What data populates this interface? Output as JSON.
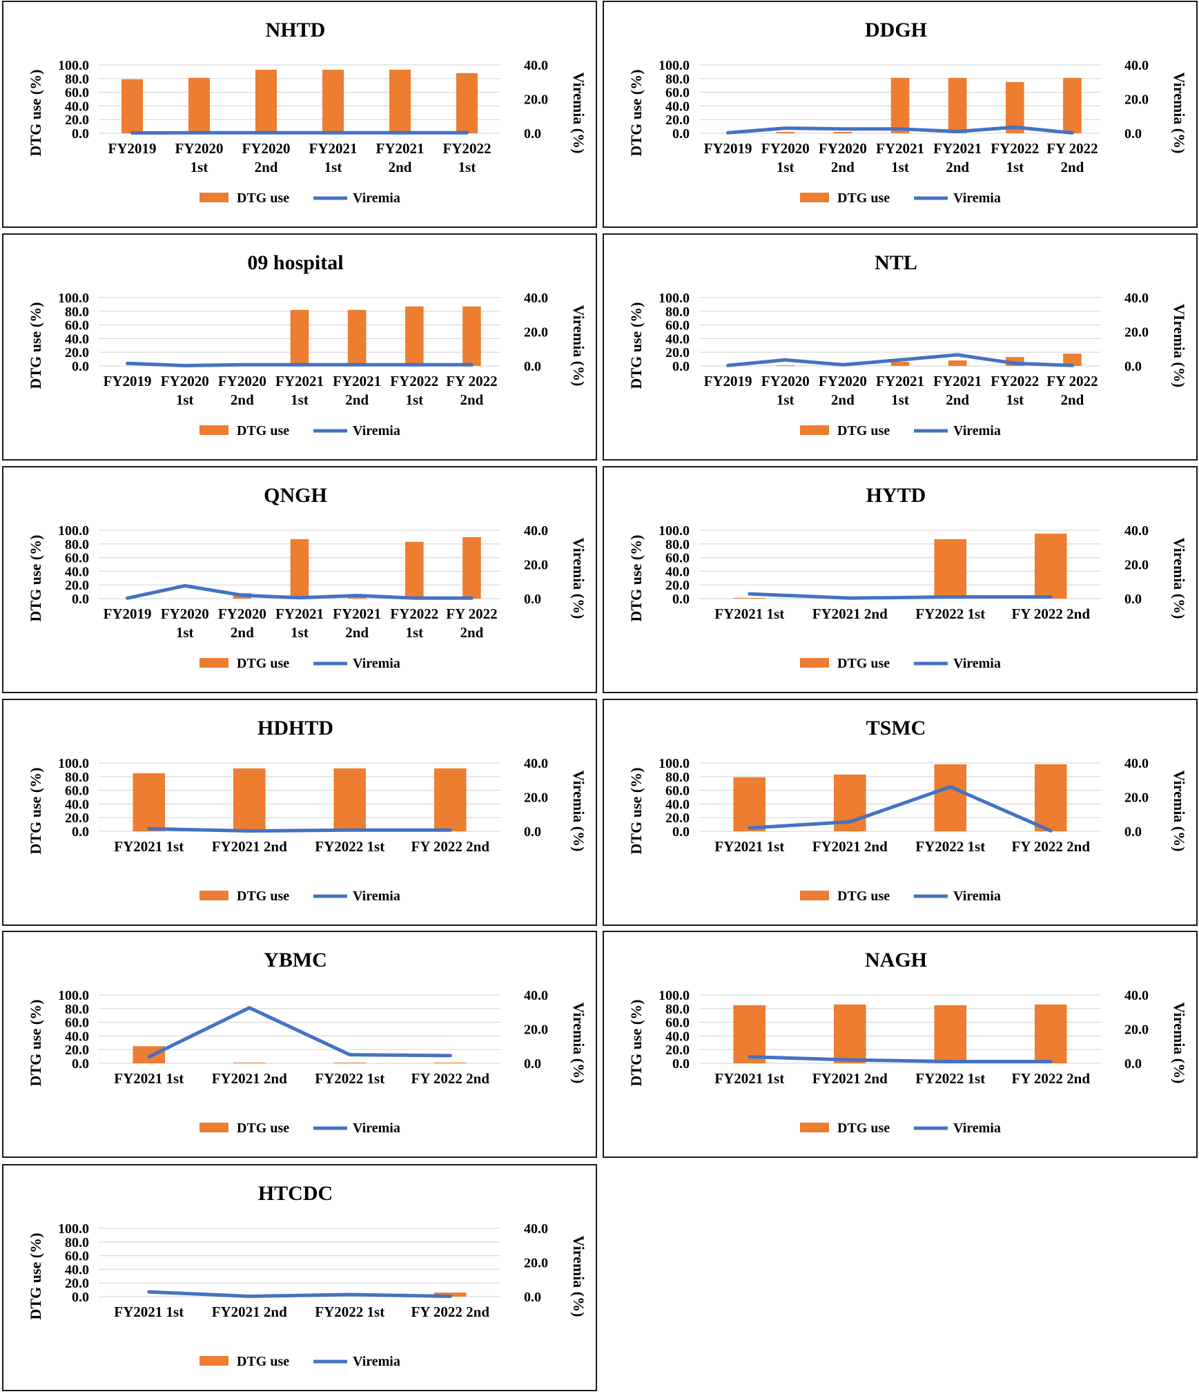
{
  "colors": {
    "bar": "#ED7D31",
    "line": "#4472C4",
    "grid": "#d9d9d9",
    "frame": "#1a1a1a"
  },
  "chart_data": [
    {
      "type": "bar+line",
      "title": "NHTD",
      "categories": [
        [
          "FY2019"
        ],
        [
          "FY2020",
          "1st"
        ],
        [
          "FY2020",
          "2nd"
        ],
        [
          "FY2021",
          "1st"
        ],
        [
          "FY2021",
          "2nd"
        ],
        [
          "FY2022",
          "1st"
        ]
      ],
      "series": [
        {
          "name": "DTG use",
          "type": "bar",
          "axis": "left",
          "values": [
            79,
            81,
            93,
            93,
            93,
            88
          ]
        },
        {
          "name": "Viremia",
          "type": "line",
          "axis": "right",
          "values": [
            0.2,
            0.3,
            0.3,
            0.3,
            0.3,
            0.3
          ]
        }
      ],
      "ylabel": "DTG use (%)",
      "y2label": "Viremia (%)",
      "yticks": [
        "100.0",
        "80.0",
        "60.0",
        "40.0",
        "20.0",
        "0.0"
      ],
      "ylim": [
        0,
        100
      ],
      "y2ticks": [
        "40.0",
        "20.0",
        "0.0"
      ],
      "y2lim": [
        0,
        40
      ],
      "legend": [
        "DTG use",
        "Viremia"
      ],
      "legend_position": "bottom",
      "grid": true
    },
    {
      "type": "bar+line",
      "title": "DDGH",
      "categories": [
        [
          "FY2019"
        ],
        [
          "FY2020",
          "1st"
        ],
        [
          "FY2020",
          "2nd"
        ],
        [
          "FY2021",
          "1st"
        ],
        [
          "FY2021",
          "2nd"
        ],
        [
          "FY2022",
          "1st"
        ],
        [
          "FY 2022",
          "2nd"
        ]
      ],
      "series": [
        {
          "name": "DTG use",
          "type": "bar",
          "axis": "left",
          "values": [
            0,
            2,
            2,
            81,
            81,
            75,
            81
          ]
        },
        {
          "name": "Viremia",
          "type": "line",
          "axis": "right",
          "values": [
            0.3,
            3,
            2.5,
            2.5,
            1,
            3.5,
            0.2
          ]
        }
      ],
      "ylabel": "DTG use (%)",
      "y2label": "Viremia (%)",
      "yticks": [
        "100.0",
        "80.0",
        "60.0",
        "40.0",
        "20.0",
        "0.0"
      ],
      "ylim": [
        0,
        100
      ],
      "y2ticks": [
        "40.0",
        "20.0",
        "0.0"
      ],
      "y2lim": [
        0,
        40
      ],
      "legend": [
        "DTG use",
        "Viremia"
      ],
      "legend_position": "bottom",
      "grid": true
    },
    {
      "type": "bar+line",
      "title": "09 hospital",
      "categories": [
        [
          "FY2019"
        ],
        [
          "FY2020",
          "1st"
        ],
        [
          "FY2020",
          "2nd"
        ],
        [
          "FY2021",
          "1st"
        ],
        [
          "FY2021",
          "2nd"
        ],
        [
          "FY2022",
          "1st"
        ],
        [
          "FY 2022",
          "2nd"
        ]
      ],
      "series": [
        {
          "name": "DTG use",
          "type": "bar",
          "axis": "left",
          "values": [
            0,
            0,
            0,
            82,
            82,
            87,
            87
          ]
        },
        {
          "name": "Viremia",
          "type": "line",
          "axis": "right",
          "values": [
            1.5,
            0.2,
            0.7,
            0.7,
            0.7,
            0.7,
            0.7
          ]
        }
      ],
      "ylabel": "DTG use (%)",
      "y2label": "Viremia (%)",
      "yticks": [
        "100.0",
        "80.0",
        "60.0",
        "40.0",
        "20.0",
        "0.0"
      ],
      "ylim": [
        0,
        100
      ],
      "y2ticks": [
        "40.0",
        "20.0",
        "0.0"
      ],
      "y2lim": [
        0,
        40
      ],
      "legend": [
        "DTG use",
        "Viremia"
      ],
      "legend_position": "bottom",
      "grid": true
    },
    {
      "type": "bar+line",
      "title": "NTL",
      "categories": [
        [
          "FY2019"
        ],
        [
          "FY2020",
          "1st"
        ],
        [
          "FY2020",
          "2nd"
        ],
        [
          "FY2021",
          "1st"
        ],
        [
          "FY2021",
          "2nd"
        ],
        [
          "FY2022",
          "1st"
        ],
        [
          "FY 2022",
          "2nd"
        ]
      ],
      "series": [
        {
          "name": "DTG use",
          "type": "bar",
          "axis": "left",
          "values": [
            0,
            1,
            0,
            6,
            8,
            13,
            18
          ]
        },
        {
          "name": "Viremia",
          "type": "line",
          "axis": "right",
          "values": [
            0.3,
            3.5,
            0.7,
            3.5,
            6.5,
            1.5,
            0.3
          ]
        }
      ],
      "ylabel": "DTG use (%)",
      "y2label": "VIremia (%)",
      "yticks": [
        "100.0",
        "80.0",
        "60.0",
        "40.0",
        "20.0",
        "0.0"
      ],
      "ylim": [
        0,
        100
      ],
      "y2ticks": [
        "40.0",
        "20.0",
        "0.0"
      ],
      "y2lim": [
        0,
        40
      ],
      "legend": [
        "DTG use",
        "Viremia"
      ],
      "legend_position": "bottom",
      "grid": true
    },
    {
      "type": "bar+line",
      "title": "QNGH",
      "categories": [
        [
          "FY2019"
        ],
        [
          "FY2020",
          "1st"
        ],
        [
          "FY2020",
          "2nd"
        ],
        [
          "FY2021",
          "1st"
        ],
        [
          "FY2021",
          "2nd"
        ],
        [
          "FY2022",
          "1st"
        ],
        [
          "FY 2022",
          "2nd"
        ]
      ],
      "series": [
        {
          "name": "DTG use",
          "type": "bar",
          "axis": "left",
          "values": [
            0,
            0,
            8,
            87,
            5,
            83,
            90
          ]
        },
        {
          "name": "Viremia",
          "type": "line",
          "axis": "right",
          "values": [
            0.3,
            7.5,
            2,
            0.5,
            1.8,
            0.3,
            0.3
          ]
        }
      ],
      "ylabel": "DTG use (%)",
      "y2label": "Viremia (%)",
      "yticks": [
        "100.0",
        "80.0",
        "60.0",
        "40.0",
        "20.0",
        "0.0"
      ],
      "ylim": [
        0,
        100
      ],
      "y2ticks": [
        "40.0",
        "20.0",
        "0.0"
      ],
      "y2lim": [
        0,
        40
      ],
      "legend": [
        "DTG use",
        "Viremia"
      ],
      "legend_position": "bottom",
      "grid": true
    },
    {
      "type": "bar+line",
      "title": "HYTD",
      "categories": [
        [
          "FY2021 1st"
        ],
        [
          "FY2021 2nd"
        ],
        [
          "FY2022 1st"
        ],
        [
          "FY 2022 2nd"
        ]
      ],
      "series": [
        {
          "name": "DTG use",
          "type": "bar",
          "axis": "left",
          "values": [
            1,
            1,
            87,
            95
          ]
        },
        {
          "name": "Viremia",
          "type": "line",
          "axis": "right",
          "values": [
            2.8,
            0.3,
            1,
            1
          ]
        }
      ],
      "ylabel": "DTG use (%)",
      "y2label": "Viremia (%)",
      "yticks": [
        "100.0",
        "80.0",
        "60.0",
        "40.0",
        "20.0",
        "0.0"
      ],
      "ylim": [
        0,
        100
      ],
      "y2ticks": [
        "40.0",
        "20.0",
        "0.0"
      ],
      "y2lim": [
        0,
        40
      ],
      "legend": [
        "DTG use",
        "Viremia"
      ],
      "legend_position": "bottom",
      "grid": true
    },
    {
      "type": "bar+line",
      "title": "HDHTD",
      "categories": [
        [
          "FY2021 1st"
        ],
        [
          "FY2021 2nd"
        ],
        [
          "FY2022 1st"
        ],
        [
          "FY 2022 2nd"
        ]
      ],
      "series": [
        {
          "name": "DTG use",
          "type": "bar",
          "axis": "left",
          "values": [
            85,
            92,
            92,
            92
          ]
        },
        {
          "name": "Viremia",
          "type": "line",
          "axis": "right",
          "values": [
            1.5,
            0.2,
            0.7,
            0.7
          ]
        }
      ],
      "ylabel": "DTG use (%)",
      "y2label": "Viremia (%)",
      "yticks": [
        "100.0",
        "80.0",
        "60.0",
        "40.0",
        "20.0",
        "0.0"
      ],
      "ylim": [
        0,
        100
      ],
      "y2ticks": [
        "40.0",
        "20.0",
        "0.0"
      ],
      "y2lim": [
        0,
        40
      ],
      "legend": [
        "DTG use",
        "Viremia"
      ],
      "legend_position": "bottom",
      "grid": true
    },
    {
      "type": "bar+line",
      "title": "TSMC",
      "categories": [
        [
          "FY2021 1st"
        ],
        [
          "FY2021 2nd"
        ],
        [
          "FY2022 1st"
        ],
        [
          "FY 2022 2nd"
        ]
      ],
      "series": [
        {
          "name": "DTG use",
          "type": "bar",
          "axis": "left",
          "values": [
            79,
            83,
            98,
            98
          ]
        },
        {
          "name": "Viremia",
          "type": "line",
          "axis": "right",
          "values": [
            2,
            5.5,
            26,
            0.3
          ]
        }
      ],
      "ylabel": "DTG use (%)",
      "y2label": "Viremia (%)",
      "yticks": [
        "100.0",
        "80.0",
        "60.0",
        "40.0",
        "20.0",
        "0.0"
      ],
      "ylim": [
        0,
        100
      ],
      "y2ticks": [
        "40.0",
        "20.0",
        "0.0"
      ],
      "y2lim": [
        0,
        40
      ],
      "legend": [
        "DTG use",
        "Viremia"
      ],
      "legend_position": "bottom",
      "grid": true
    },
    {
      "type": "bar+line",
      "title": "YBMC",
      "categories": [
        [
          "FY2021 1st"
        ],
        [
          "FY2021 2nd"
        ],
        [
          "FY2022 1st"
        ],
        [
          "FY 2022 2nd"
        ]
      ],
      "series": [
        {
          "name": "DTG use",
          "type": "bar",
          "axis": "left",
          "values": [
            25,
            1,
            1,
            1
          ]
        },
        {
          "name": "Viremia",
          "type": "line",
          "axis": "right",
          "values": [
            3.8,
            32.5,
            5,
            4.5
          ]
        }
      ],
      "ylabel": "DTG use (%)",
      "y2label": "Viremia (%)",
      "yticks": [
        "100.0",
        "80.0",
        "60.0",
        "40.0",
        "20.0",
        "0.0"
      ],
      "ylim": [
        0,
        100
      ],
      "y2ticks": [
        "40.0",
        "20.0",
        "0.0"
      ],
      "y2lim": [
        0,
        40
      ],
      "legend": [
        "DTG use",
        "Viremia"
      ],
      "legend_position": "bottom",
      "grid": true
    },
    {
      "type": "bar+line",
      "title": "NAGH",
      "categories": [
        [
          "FY2021 1st"
        ],
        [
          "FY2021 2nd"
        ],
        [
          "FY2022 1st"
        ],
        [
          "FY 2022 2nd"
        ]
      ],
      "series": [
        {
          "name": "DTG use",
          "type": "bar",
          "axis": "left",
          "values": [
            85,
            86,
            85,
            86
          ]
        },
        {
          "name": "Viremia",
          "type": "line",
          "axis": "right",
          "values": [
            3.8,
            2,
            1,
            1
          ]
        }
      ],
      "ylabel": "DTG use (%)",
      "y2label": "Viremia (%)",
      "yticks": [
        "100.0",
        "80.0",
        "60.0",
        "40.0",
        "20.0",
        "0.0"
      ],
      "ylim": [
        0,
        100
      ],
      "y2ticks": [
        "40.0",
        "20.0",
        "0.0"
      ],
      "y2lim": [
        0,
        40
      ],
      "legend": [
        "DTG use",
        "Viremia"
      ],
      "legend_position": "bottom",
      "grid": true
    },
    {
      "type": "bar+line",
      "title": "HTCDC",
      "categories": [
        [
          "FY2021 1st"
        ],
        [
          "FY2021 2nd"
        ],
        [
          "FY2022 1st"
        ],
        [
          "FY 2022 2nd"
        ]
      ],
      "series": [
        {
          "name": "DTG use",
          "type": "bar",
          "axis": "left",
          "values": [
            0,
            0,
            0,
            6
          ]
        },
        {
          "name": "Viremia",
          "type": "line",
          "axis": "right",
          "values": [
            2.8,
            0.2,
            1.2,
            0.2
          ]
        }
      ],
      "ylabel": "DTG use (%)",
      "y2label": "Viremia (%)",
      "yticks": [
        "100.0",
        "80.0",
        "60.0",
        "40.0",
        "20.0",
        "0.0"
      ],
      "ylim": [
        0,
        100
      ],
      "y2ticks": [
        "40.0",
        "20.0",
        "0.0"
      ],
      "y2lim": [
        0,
        40
      ],
      "legend": [
        "DTG use",
        "Viremia"
      ],
      "legend_position": "bottom",
      "grid": true
    }
  ]
}
